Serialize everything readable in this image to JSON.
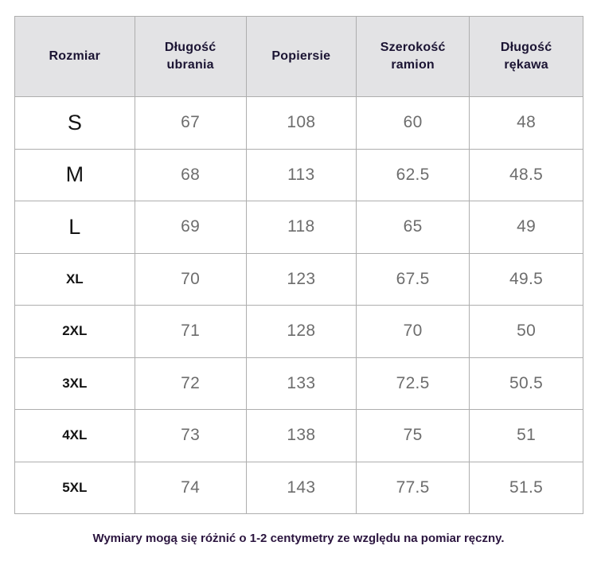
{
  "chart_data": {
    "type": "table",
    "columns": [
      "Rozmiar",
      "Długość ubrania",
      "Popiersie",
      "Szerokość ramion",
      "Długość rękawa"
    ],
    "rows": [
      [
        "S",
        67,
        108,
        60,
        48
      ],
      [
        "M",
        68,
        113,
        62.5,
        48.5
      ],
      [
        "L",
        69,
        118,
        65,
        49
      ],
      [
        "XL",
        70,
        123,
        67.5,
        49.5
      ],
      [
        "2XL",
        71,
        128,
        70,
        50
      ],
      [
        "3XL",
        72,
        133,
        72.5,
        50.5
      ],
      [
        "4XL",
        73,
        138,
        75,
        51
      ],
      [
        "5XL",
        74,
        143,
        77.5,
        51.5
      ]
    ],
    "note": "Wymiary mogą się różnić o 1-2 centymetry ze względu na pomiar ręczny."
  },
  "colors": {
    "background": "#ffffff",
    "header_bg": "#e3e3e5",
    "header_text": "#1b1433",
    "border": "#aeaeae",
    "size_text": "#141414",
    "number_text": "#6d6d6d",
    "note_text": "#2b153f"
  }
}
